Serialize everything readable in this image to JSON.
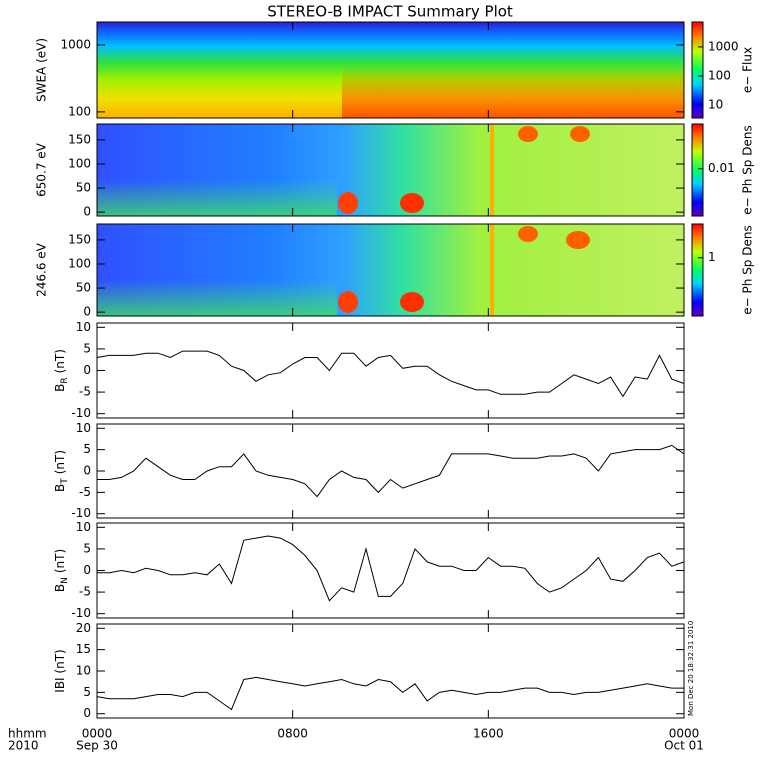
{
  "title": "STEREO-B IMPACT Summary Plot",
  "stamp": "Mon Dec 20 18:32:31 2010",
  "x_axis": {
    "xlim": [
      0,
      24
    ],
    "xticks": [
      {
        "value": 0,
        "label": "0000"
      },
      {
        "value": 8,
        "label": "0800"
      },
      {
        "value": 16,
        "label": "1600"
      },
      {
        "value": 24,
        "label": "0000"
      }
    ],
    "row_labels": [
      "hhmm",
      "2010"
    ],
    "date_labels": [
      {
        "value": 0,
        "label": "Sep 30"
      },
      {
        "value": 24,
        "label": "Oct 01"
      }
    ]
  },
  "chart_data": [
    {
      "type": "spectrogram",
      "ylabel": "SWEA (eV)",
      "log_y": true,
      "ylim": [
        81,
        2200
      ],
      "yticks": [
        100,
        1000
      ],
      "colorbar": {
        "label": "e− Flux",
        "log": true,
        "lim": [
          3.6,
          7200
        ],
        "ticks": [
          10,
          100,
          1000
        ]
      }
    },
    {
      "type": "spectrogram",
      "ylabel": "650.7 eV",
      "log_y": false,
      "ylim": [
        -8,
        183
      ],
      "yticks": [
        0,
        50,
        100,
        150
      ],
      "colorbar": {
        "label": "e− Ph Sp Dens",
        "log": true,
        "lim": [
          0.0015,
          0.06
        ],
        "ticks": [
          0.01
        ]
      }
    },
    {
      "type": "spectrogram",
      "ylabel": "246.6 eV",
      "log_y": false,
      "ylim": [
        -8,
        183
      ],
      "yticks": [
        0,
        50,
        100,
        150
      ],
      "colorbar": {
        "label": "e− Ph Sp Dens",
        "log": true,
        "lim": [
          0.15,
          3
        ],
        "ticks": [
          1
        ]
      }
    },
    {
      "type": "line",
      "ylabel": "B",
      "ylabel_subscript": "R",
      "ylabel_unit": "(nT)",
      "color": "#000000",
      "ylim": [
        -11,
        11
      ],
      "yticks": [
        -10,
        -5,
        0,
        5,
        10
      ],
      "x": [
        0,
        0.5,
        1,
        1.5,
        2,
        2.5,
        3,
        3.5,
        4,
        4.5,
        5,
        5.5,
        6,
        6.5,
        7,
        7.5,
        8,
        8.5,
        9,
        9.5,
        10,
        10.5,
        11,
        11.5,
        12,
        12.5,
        13,
        13.5,
        14,
        14.5,
        15,
        15.5,
        16,
        16.5,
        17,
        17.5,
        18,
        18.5,
        19,
        19.5,
        20,
        20.5,
        21,
        21.5,
        22,
        22.5,
        23,
        23.5,
        24
      ],
      "values": [
        3,
        3.5,
        3.5,
        3.5,
        4,
        4,
        3,
        4.5,
        4.5,
        4.5,
        3.5,
        1,
        0,
        -2.5,
        -1,
        -0.5,
        1.5,
        3,
        3,
        0,
        4,
        4,
        1,
        3,
        3.5,
        0.5,
        1,
        1,
        -1,
        -2.5,
        -3.5,
        -4.5,
        -4.5,
        -5.5,
        -5.5,
        -5.5,
        -5,
        -5,
        -3,
        -1,
        -2,
        -3,
        -1.5,
        -6,
        -1.5,
        -2,
        3.5,
        -2,
        -3
      ]
    },
    {
      "type": "line",
      "ylabel": "B",
      "ylabel_subscript": "T",
      "ylabel_unit": "(nT)",
      "color": "#000000",
      "ylim": [
        -11,
        11
      ],
      "yticks": [
        -10,
        -5,
        0,
        5,
        10
      ],
      "x": [
        0,
        0.5,
        1,
        1.5,
        2,
        2.5,
        3,
        3.5,
        4,
        4.5,
        5,
        5.5,
        6,
        6.5,
        7,
        7.5,
        8,
        8.5,
        9,
        9.5,
        10,
        10.5,
        11,
        11.5,
        12,
        12.5,
        13,
        13.5,
        14,
        14.5,
        15,
        15.5,
        16,
        16.5,
        17,
        17.5,
        18,
        18.5,
        19,
        19.5,
        20,
        20.5,
        21,
        21.5,
        22,
        22.5,
        23,
        23.5,
        24
      ],
      "values": [
        -2,
        -2,
        -1.5,
        0,
        3,
        1,
        -1,
        -2,
        -2,
        0,
        1,
        1,
        4,
        0,
        -1,
        -1.5,
        -2,
        -3,
        -6,
        -2,
        0,
        -1.5,
        -2,
        -5,
        -2,
        -4,
        -3,
        -2,
        -1,
        4,
        4,
        4,
        4,
        3.5,
        3,
        3,
        3,
        3.5,
        3.5,
        4,
        3,
        0,
        4,
        4.5,
        5,
        5,
        5,
        6,
        4
      ]
    },
    {
      "type": "line",
      "ylabel": "B",
      "ylabel_subscript": "N",
      "ylabel_unit": "(nT)",
      "color": "#000000",
      "ylim": [
        -11,
        11
      ],
      "yticks": [
        -10,
        -5,
        0,
        5,
        10
      ],
      "x": [
        0,
        0.5,
        1,
        1.5,
        2,
        2.5,
        3,
        3.5,
        4,
        4.5,
        5,
        5.5,
        6,
        6.5,
        7,
        7.5,
        8,
        8.5,
        9,
        9.5,
        10,
        10.5,
        11,
        11.5,
        12,
        12.5,
        13,
        13.5,
        14,
        14.5,
        15,
        15.5,
        16,
        16.5,
        17,
        17.5,
        18,
        18.5,
        19,
        19.5,
        20,
        20.5,
        21,
        21.5,
        22,
        22.5,
        23,
        23.5,
        24
      ],
      "values": [
        -0.5,
        -0.5,
        0,
        -0.5,
        0.5,
        0,
        -1,
        -1,
        -0.5,
        -1,
        1.5,
        -3,
        7,
        7.5,
        8,
        7.5,
        6,
        3.5,
        0,
        -7,
        -4,
        -5,
        5,
        -6,
        -6,
        -3,
        5,
        2,
        1,
        1,
        0,
        0,
        3,
        1,
        1,
        0.5,
        -3,
        -5,
        -4,
        -2,
        0,
        3,
        -2,
        -2.5,
        0,
        3,
        4,
        1,
        2
      ]
    },
    {
      "type": "line",
      "ylabel": "IBI (nT)",
      "color": "#000000",
      "ylim": [
        -1,
        21
      ],
      "yticks": [
        0,
        5,
        10,
        15,
        20
      ],
      "x": [
        0,
        0.5,
        1,
        1.5,
        2,
        2.5,
        3,
        3.5,
        4,
        4.5,
        5,
        5.5,
        6,
        6.5,
        7,
        7.5,
        8,
        8.5,
        9,
        9.5,
        10,
        10.5,
        11,
        11.5,
        12,
        12.5,
        13,
        13.5,
        14,
        14.5,
        15,
        15.5,
        16,
        16.5,
        17,
        17.5,
        18,
        18.5,
        19,
        19.5,
        20,
        20.5,
        21,
        21.5,
        22,
        22.5,
        23,
        23.5,
        24
      ],
      "values": [
        4,
        3.5,
        3.5,
        3.5,
        4,
        4.5,
        4.5,
        4,
        5,
        5,
        3,
        1,
        8,
        8.5,
        8,
        7.5,
        7,
        6.5,
        7,
        7.5,
        8,
        7,
        6.5,
        8,
        7.5,
        5,
        7,
        3,
        5,
        5.5,
        5,
        4.5,
        5,
        5,
        5.5,
        6,
        6,
        5,
        5,
        4.5,
        5,
        5,
        5.5,
        6,
        6.5,
        7,
        6.5,
        6,
        6
      ]
    }
  ]
}
